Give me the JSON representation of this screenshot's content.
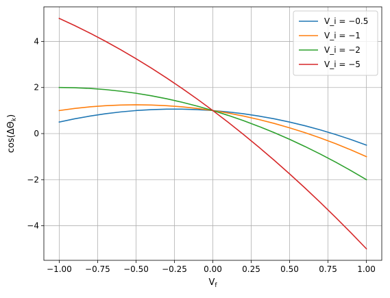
{
  "chart_data": {
    "type": "line",
    "title": "",
    "xlabel": "V_f",
    "ylabel": "cos(ΔΘ_k)",
    "xlim": [
      -1.1,
      1.1
    ],
    "ylim": [
      -5.5,
      5.5
    ],
    "xticks": [
      -1.0,
      -0.75,
      -0.5,
      -0.25,
      0.0,
      0.25,
      0.5,
      0.75,
      1.0
    ],
    "xtick_labels": [
      "−1.00",
      "−0.75",
      "−0.50",
      "−0.25",
      "0.00",
      "0.25",
      "0.50",
      "0.75",
      "1.00"
    ],
    "yticks": [
      -4,
      -2,
      0,
      2,
      4
    ],
    "ytick_labels": [
      "−4",
      "−2",
      "0",
      "2",
      "4"
    ],
    "grid": true,
    "legend_position": "top-right",
    "x": [
      -1.0,
      -0.9,
      -0.8,
      -0.7,
      -0.6,
      -0.5,
      -0.4,
      -0.3,
      -0.2,
      -0.1,
      0.0,
      0.1,
      0.2,
      0.3,
      0.4,
      0.5,
      0.6,
      0.7,
      0.8,
      0.9,
      1.0
    ],
    "series": [
      {
        "name": "V_i = −0.5",
        "color": "#1f77b4",
        "values": [
          0.5,
          0.64,
          0.76,
          0.86,
          0.94,
          1.0,
          1.04,
          1.06,
          1.06,
          1.04,
          1.0,
          0.94,
          0.86,
          0.76,
          0.64,
          0.5,
          0.34,
          0.16,
          -0.04,
          -0.26,
          -0.5
        ]
      },
      {
        "name": "V_i = −1",
        "color": "#ff7f0e",
        "values": [
          1.0,
          1.09,
          1.16,
          1.21,
          1.24,
          1.25,
          1.24,
          1.21,
          1.16,
          1.09,
          1.0,
          0.89,
          0.76,
          0.61,
          0.44,
          0.25,
          0.04,
          -0.19,
          -0.44,
          -0.71,
          -1.0
        ]
      },
      {
        "name": "V_i = −2",
        "color": "#2ca02c",
        "values": [
          2.0,
          1.99,
          1.96,
          1.91,
          1.84,
          1.75,
          1.64,
          1.51,
          1.36,
          1.19,
          1.0,
          0.79,
          0.56,
          0.31,
          0.04,
          -0.25,
          -0.56,
          -0.89,
          -1.24,
          -1.61,
          -2.0
        ]
      },
      {
        "name": "V_i = −5",
        "color": "#d62728",
        "values": [
          5.0,
          4.69,
          4.36,
          4.01,
          3.64,
          3.25,
          2.84,
          2.41,
          1.96,
          1.49,
          1.0,
          0.49,
          -0.04,
          -0.59,
          -1.16,
          -1.75,
          -2.36,
          -2.99,
          -3.64,
          -4.31,
          -5.0
        ]
      }
    ]
  }
}
